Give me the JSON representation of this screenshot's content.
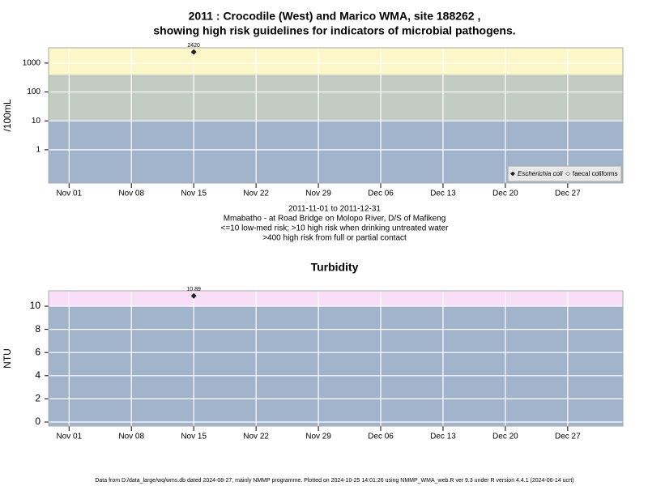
{
  "chart_data": [
    {
      "type": "scatter",
      "title": [
        "2011 : Crocodile (West) and Marico WMA, site 188262 ,",
        "showing high risk guidelines for indicators of microbial pathogens."
      ],
      "ylabel": "/100mL",
      "notes": [
        "2011-11-01 to 2011-12-31",
        "Mmabatho - at Road Bridge on Molopo River, D/S of Mafikeng",
        "<=10 low-med risk; >10 high risk when drinking untreated water",
        ">400 high risk from full or partial contact"
      ],
      "log_y": true,
      "x": [
        15
      ],
      "series": [
        {
          "name": "Escherichia coli",
          "color": "#222222",
          "values": [
            2420
          ]
        },
        {
          "name": "faecal coliforms",
          "color": "#ffffff",
          "values": [
            null
          ]
        }
      ],
      "bands": [
        {
          "to": 10,
          "color": "#a2b4cc"
        },
        {
          "from": 10,
          "to": 400,
          "color": "#c3ccc2"
        },
        {
          "from": 400,
          "color": "#fcf7c9"
        }
      ],
      "xlim": [
        -1.3,
        63.2
      ],
      "xticks": [
        {
          "value": 1,
          "label": "Nov 01"
        },
        {
          "value": 8,
          "label": "Nov 08"
        },
        {
          "value": 15,
          "label": "Nov 15"
        },
        {
          "value": 22,
          "label": "Nov 22"
        },
        {
          "value": 29,
          "label": "Nov 29"
        },
        {
          "value": 36,
          "label": "Dec 06"
        },
        {
          "value": 43,
          "label": "Dec 13"
        },
        {
          "value": 50,
          "label": "Dec 20"
        },
        {
          "value": 57,
          "label": "Dec 27"
        }
      ],
      "ylim": [
        0.07,
        3400
      ],
      "yticks": [
        1,
        10,
        100,
        1000
      ],
      "grid": true,
      "legend": "bottom-right"
    },
    {
      "type": "scatter",
      "title": [
        "Turbidity"
      ],
      "ylabel": "NTU",
      "log_y": false,
      "x": [
        15
      ],
      "series": [
        {
          "name": "Turbidity",
          "color": "#222222",
          "values": [
            10.89
          ]
        }
      ],
      "bands": [
        {
          "to": 10,
          "color": "#a2b4cc"
        },
        {
          "from": 10,
          "color": "#f9def8"
        }
      ],
      "xlim": [
        -1.3,
        63.2
      ],
      "xticks": [
        {
          "value": 1,
          "label": "Nov 01"
        },
        {
          "value": 8,
          "label": "Nov 08"
        },
        {
          "value": 15,
          "label": "Nov 15"
        },
        {
          "value": 22,
          "label": "Nov 22"
        },
        {
          "value": 29,
          "label": "Nov 29"
        },
        {
          "value": 36,
          "label": "Dec 06"
        },
        {
          "value": 43,
          "label": "Dec 13"
        },
        {
          "value": 50,
          "label": "Dec 20"
        },
        {
          "value": 57,
          "label": "Dec 27"
        }
      ],
      "ylim": [
        -0.35,
        11.33
      ],
      "yticks": [
        0,
        2,
        4,
        6,
        8,
        10
      ],
      "grid": true
    }
  ],
  "footer": "Data from D:/data_large/wq/wms.db dated 2024-08-27, mainly NMMP programme. Plotted on 2024-10-25 14:01:26 using NMMP_WMA_web.R ver 9.3 under R version 4.4.1 (2024-06-14 ucrt)"
}
